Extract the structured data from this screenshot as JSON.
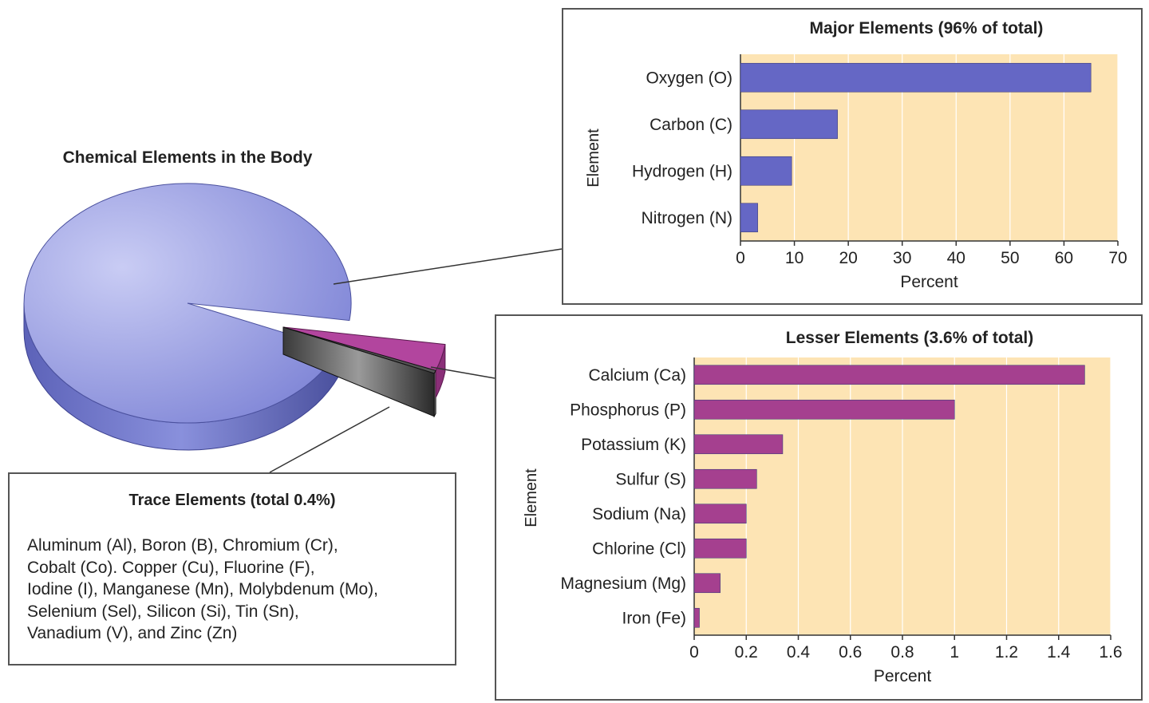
{
  "colors": {
    "pie_major": "#7e84d6",
    "pie_lesser": "#b2459e",
    "bar_major": "#6567c5",
    "bar_lesser": "#a5408f",
    "plot_bg": "#fde4b4"
  },
  "trace": {
    "title": "Trace Elements (total 0.4%)",
    "lines": [
      "Aluminum (Al), Boron (B), Chromium (Cr),",
      "Cobalt (Co). Copper (Cu), Fluorine (F),",
      "Iodine (I), Manganese (Mn), Molybdenum (Mo),",
      "Selenium (Sel), Silicon (Si), Tin (Sn),",
      "Vanadium (V), and Zinc (Zn)"
    ]
  },
  "chart_data": [
    {
      "type": "pie",
      "title": "Chemical Elements in the Body",
      "slices": [
        {
          "label": "Major Elements",
          "value": 96,
          "color": "#7e84d6"
        },
        {
          "label": "Lesser Elements",
          "value": 3.6,
          "color": "#b2459e"
        },
        {
          "label": "Trace Elements",
          "value": 0.4,
          "color": "#444444"
        }
      ],
      "style": "3d-exploded"
    },
    {
      "type": "bar",
      "orientation": "horizontal",
      "title": "Major Elements (96% of total)",
      "xlabel": "Percent",
      "ylabel": "Element",
      "categories": [
        "Oxygen (O)",
        "Carbon (C)",
        "Hydrogen (H)",
        "Nitrogen (N)"
      ],
      "values": [
        65,
        18,
        9.5,
        3.2
      ],
      "xlim": [
        0,
        70
      ],
      "xticks": [
        "0",
        "10",
        "20",
        "30",
        "40",
        "50",
        "60",
        "70"
      ],
      "grid": "vertical",
      "color": "#6567c5"
    },
    {
      "type": "bar",
      "orientation": "horizontal",
      "title": "Lesser Elements (3.6% of total)",
      "xlabel": "Percent",
      "ylabel": "Element",
      "categories": [
        "Calcium (Ca)",
        "Phosphorus (P)",
        "Potassium (K)",
        "Sulfur (S)",
        "Sodium (Na)",
        "Chlorine (Cl)",
        "Magnesium (Mg)",
        "Iron (Fe)"
      ],
      "values": [
        1.5,
        1.0,
        0.34,
        0.24,
        0.2,
        0.2,
        0.1,
        0.02
      ],
      "xlim": [
        0,
        1.6
      ],
      "xticks": [
        "0",
        "0.2",
        "0.4",
        "0.6",
        "0.8",
        "1",
        "1.2",
        "1.4",
        "1.6"
      ],
      "grid": "vertical",
      "color": "#a5408f"
    }
  ]
}
